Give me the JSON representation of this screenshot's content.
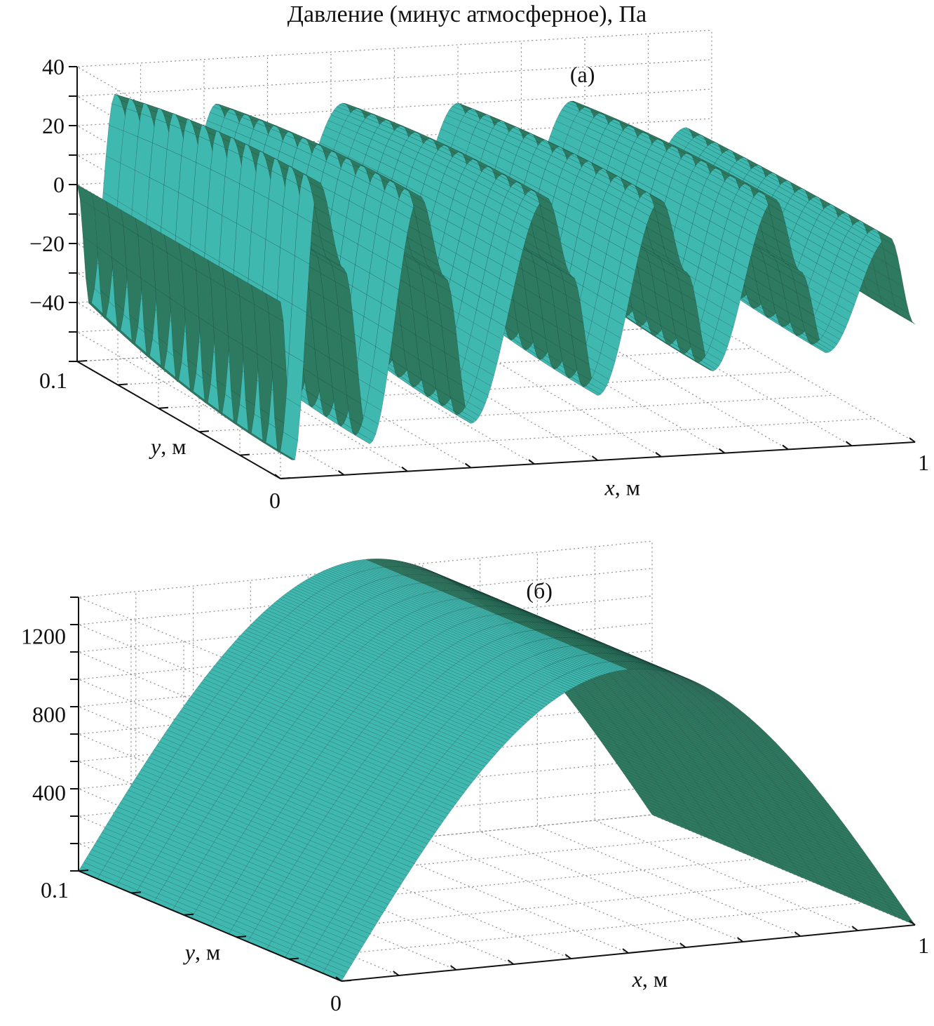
{
  "title": "Давление (минус атмосферное), Па",
  "chart_data": [
    {
      "type": "surface",
      "panel_label": "(а)",
      "x_var": "x",
      "x_unit": ", м",
      "y_var": "y",
      "y_unit": ", м",
      "xlim": [
        0,
        1
      ],
      "ylim": [
        0,
        0.1
      ],
      "zlim": [
        -60,
        40
      ],
      "x_tick_labels": [
        {
          "value": 0,
          "label": "0"
        },
        {
          "value": 1,
          "label": "1"
        }
      ],
      "y_tick_labels": [
        {
          "value": 0,
          "label": "0"
        },
        {
          "value": 0.1,
          "label": "0.1"
        }
      ],
      "z_ticks": [
        -40,
        -20,
        0,
        20,
        40
      ],
      "z_tick_labels": [
        "−40",
        "−20",
        "0",
        "20",
        "40"
      ],
      "grid": true,
      "surface": {
        "description_kind": "standing-wave",
        "x": [
          0,
          0.02,
          0.06,
          0.1,
          0.14,
          0.22,
          0.26,
          0.3,
          0.42,
          0.46,
          0.5,
          0.6,
          0.64,
          0.68,
          0.78,
          0.82,
          0.86,
          0.96,
          1.0
        ],
        "p_at_y0": [
          0,
          -55,
          40,
          10,
          -50,
          33,
          5,
          -45,
          30,
          3,
          -38,
          27,
          2,
          -32,
          25,
          0,
          -28,
          10,
          -20
        ],
        "peaks": [
          40,
          33,
          30,
          27,
          25
        ],
        "troughs": [
          -55,
          -50,
          -45,
          -38,
          -32,
          -28
        ]
      },
      "colors": {
        "surface": "#3fb8b0",
        "shadow": "#2e7a60",
        "mesh": "#0d2e2a"
      }
    },
    {
      "type": "surface",
      "panel_label": "(б)",
      "x_var": "x",
      "x_unit": ", м",
      "y_var": "y",
      "y_unit": ", м",
      "xlim": [
        0,
        1
      ],
      "ylim": [
        0,
        0.1
      ],
      "zlim": [
        0,
        1400
      ],
      "x_tick_labels": [
        {
          "value": 0,
          "label": "0"
        },
        {
          "value": 1,
          "label": "1"
        }
      ],
      "y_tick_labels": [
        {
          "value": 0,
          "label": "0"
        },
        {
          "value": 0.1,
          "label": "0.1"
        }
      ],
      "z_ticks": [
        400,
        800,
        1200
      ],
      "z_tick_labels": [
        "400",
        "800",
        "1200"
      ],
      "grid": true,
      "surface": {
        "description_kind": "half-sine",
        "peak": 1450,
        "x_peak": 0.5
      },
      "colors": {
        "surface": "#3fb8b0",
        "shadow": "#2e7a60",
        "mesh": "#0d2e2a"
      }
    }
  ]
}
